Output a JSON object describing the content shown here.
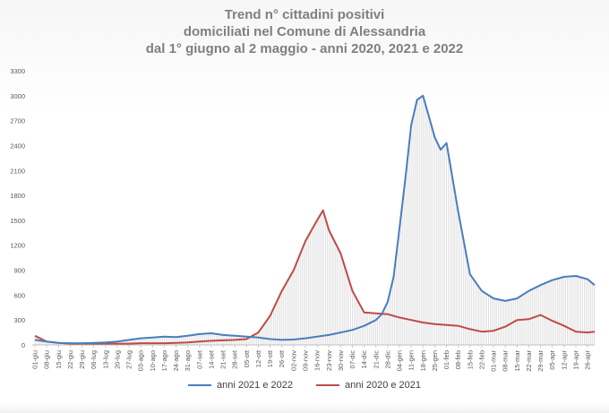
{
  "chart_data": {
    "type": "line",
    "title": [
      "Trend n° cittadini positivi",
      "domiciliati nel Comune di Alessandria",
      "dal 1° giugno al 2 maggio - anni 2020, 2021 e 2022"
    ],
    "xlabel": "",
    "ylabel": "",
    "ylim": [
      0,
      3300
    ],
    "yticks": [
      0,
      300,
      600,
      900,
      1200,
      1500,
      1800,
      2100,
      2400,
      2700,
      3000,
      3300
    ],
    "grid": false,
    "legend_position": "bottom",
    "x_tick_labels": [
      "01-giu",
      "08-giu",
      "15-giu",
      "22-giu",
      "29-giu",
      "06-lug",
      "13-lug",
      "20-lug",
      "27-lug",
      "03-ago",
      "10-ago",
      "17-ago",
      "24-ago",
      "31-ago",
      "07-set",
      "14-set",
      "21-set",
      "28-set",
      "05-ott",
      "12-ott",
      "19-ott",
      "26-ott",
      "02-nov",
      "09-nov",
      "16-nov",
      "23-nov",
      "30-nov",
      "07-dic",
      "14-dic",
      "21-dic",
      "28-dic",
      "04-gen",
      "11-gen",
      "18-gen",
      "25-gen",
      "01-feb",
      "08-feb",
      "15-feb",
      "22-feb",
      "01-mar",
      "08-mar",
      "15-mar",
      "22-mar",
      "29-mar",
      "05-apr",
      "12-apr",
      "19-apr",
      "26-apr"
    ],
    "series": [
      {
        "name": "anni 2021 e 2022",
        "color": "#4a7ebb",
        "x_week_index": [
          0,
          1,
          2,
          3,
          4,
          5,
          6,
          7,
          8,
          9,
          10,
          11,
          12,
          13,
          14,
          15,
          16,
          17,
          18,
          19,
          20,
          21,
          22,
          23,
          24,
          25,
          26,
          27,
          28,
          29,
          29.5,
          30,
          30.5,
          31,
          31.5,
          32,
          32.5,
          33,
          33.5,
          34,
          34.5,
          35,
          36,
          37,
          38,
          39,
          40,
          41,
          42,
          43,
          44,
          45,
          46,
          47,
          47.6
        ],
        "values": [
          60,
          40,
          25,
          20,
          20,
          25,
          30,
          40,
          60,
          80,
          90,
          100,
          95,
          110,
          130,
          140,
          120,
          110,
          100,
          90,
          70,
          60,
          65,
          80,
          100,
          120,
          150,
          180,
          230,
          300,
          370,
          520,
          820,
          1400,
          2000,
          2650,
          2950,
          3000,
          2750,
          2500,
          2350,
          2430,
          1600,
          850,
          650,
          560,
          530,
          560,
          650,
          720,
          780,
          820,
          830,
          790,
          720
        ]
      },
      {
        "name": "anni 2020 e 2021",
        "color": "#be4b48",
        "x_week_index": [
          0,
          1,
          2,
          3,
          4,
          5,
          6,
          7,
          8,
          9,
          10,
          11,
          12,
          13,
          14,
          15,
          16,
          17,
          18,
          19,
          20,
          21,
          22,
          23,
          24,
          24.5,
          25,
          26,
          27,
          28,
          29,
          30,
          31,
          32,
          33,
          34,
          35,
          36,
          37,
          38,
          39,
          40,
          41,
          42,
          43,
          44,
          45,
          46,
          47,
          47.6
        ],
        "values": [
          110,
          40,
          25,
          15,
          15,
          15,
          15,
          15,
          15,
          20,
          20,
          20,
          25,
          30,
          40,
          50,
          55,
          60,
          70,
          150,
          350,
          650,
          900,
          1250,
          1500,
          1620,
          1380,
          1100,
          650,
          390,
          380,
          370,
          330,
          300,
          270,
          250,
          240,
          230,
          190,
          160,
          170,
          220,
          300,
          310,
          360,
          290,
          230,
          160,
          150,
          160
        ]
      }
    ]
  }
}
